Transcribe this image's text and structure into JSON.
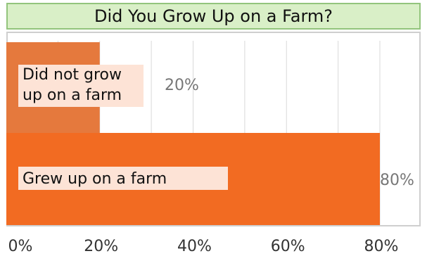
{
  "chart_data": {
    "type": "bar",
    "orientation": "horizontal",
    "title": "Did You Grow Up on a Farm?",
    "categories": [
      "Did not grow up on a farm",
      "Grew up on a farm"
    ],
    "category_label_lines": [
      [
        "Did not grow",
        "up on a farm"
      ],
      [
        "Grew up on a farm"
      ]
    ],
    "values": [
      20,
      80
    ],
    "value_labels": [
      "20%",
      "80%"
    ],
    "xlim": [
      0,
      80
    ],
    "x_ticks": [
      0,
      20,
      40,
      60,
      80
    ],
    "x_tick_labels": [
      "0%",
      "20%",
      "40%",
      "60%",
      "80%"
    ],
    "grid": true,
    "colors": {
      "bar_1": "#e5793d",
      "bar_2": "#f26b22",
      "title_bg": "#d9efc7",
      "title_border": "#93c47d",
      "label_box": "#fde3d6"
    }
  }
}
